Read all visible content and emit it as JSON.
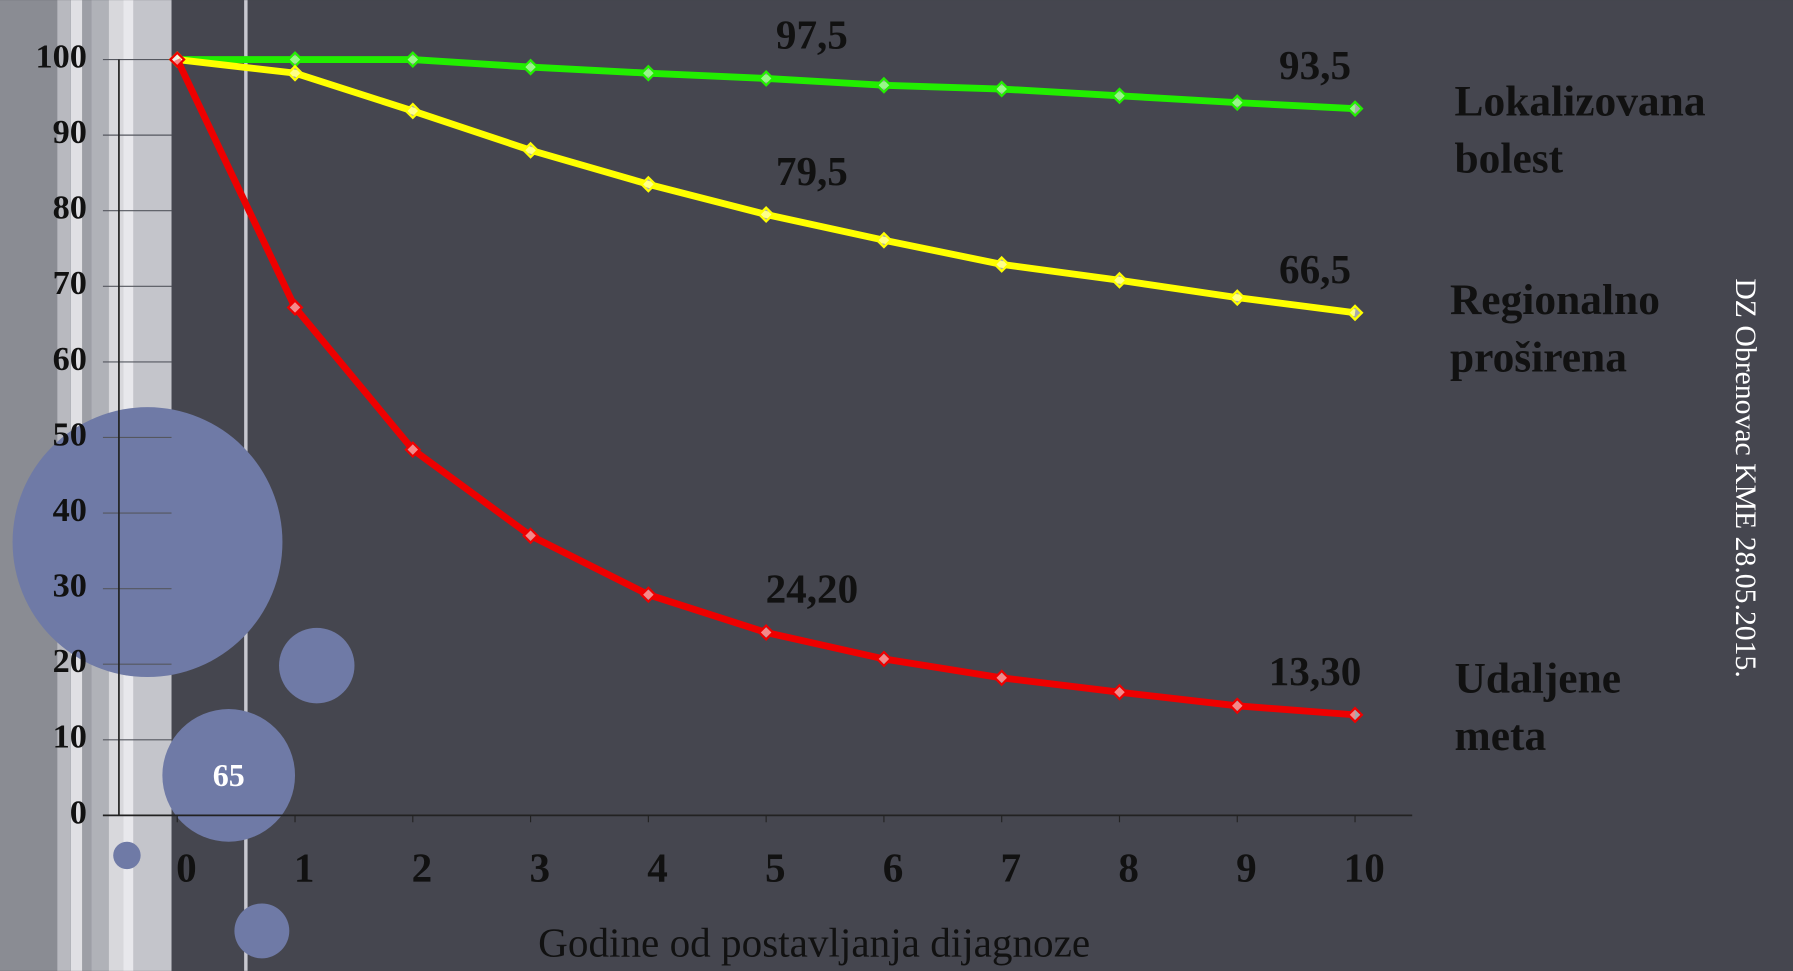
{
  "slide": {
    "footer": "DZ Obrenovac KME 28.05.2015.",
    "badge": "65"
  },
  "chart_data": {
    "type": "line",
    "x_label": "Godine od postavljanja dijagnoze",
    "x": [
      0,
      1,
      2,
      3,
      4,
      5,
      6,
      7,
      8,
      9,
      10
    ],
    "xlim": [
      0,
      10
    ],
    "xticks": [
      0,
      1,
      2,
      3,
      4,
      5,
      6,
      7,
      8,
      9,
      10
    ],
    "ylim": [
      0,
      100
    ],
    "yticks": [
      0,
      10,
      20,
      30,
      40,
      50,
      60,
      70,
      80,
      90,
      100
    ],
    "series": [
      {
        "name": "Lokalizovana bolest",
        "color": "#22ee00",
        "values": [
          100,
          100,
          100,
          99,
          98.2,
          97.5,
          96.6,
          96.1,
          95.2,
          94.3,
          93.5
        ],
        "value_labels": [
          null,
          null,
          null,
          null,
          null,
          "97,5",
          null,
          null,
          null,
          null,
          "93,5"
        ]
      },
      {
        "name": "Regionalno proširena",
        "color": "#ffff00",
        "values": [
          100,
          98.2,
          93.2,
          88,
          83.5,
          79.5,
          76.1,
          72.9,
          70.8,
          68.5,
          66.5
        ],
        "value_labels": [
          null,
          null,
          null,
          null,
          null,
          "79,5",
          null,
          null,
          null,
          null,
          "66,5"
        ]
      },
      {
        "name": "Udaljene meta",
        "color": "#ee0000",
        "values": [
          100,
          67.2,
          48.4,
          37,
          29.2,
          24.2,
          20.7,
          18.2,
          16.3,
          14.5,
          13.3
        ],
        "value_labels": [
          null,
          null,
          null,
          null,
          null,
          "24,20",
          null,
          null,
          null,
          null,
          "13,30"
        ]
      }
    ]
  }
}
